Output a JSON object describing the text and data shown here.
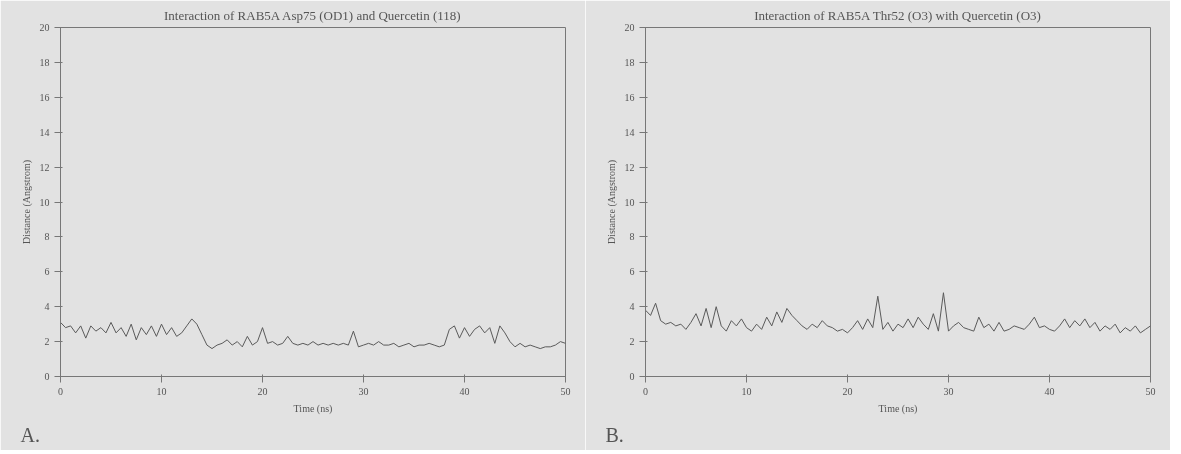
{
  "chart_data": [
    {
      "type": "line",
      "title": "Interaction of RAB5A Asp75 (OD1) and Quercetin (118)",
      "xlabel": "Time (ns)",
      "ylabel": "Distance (Angstrom)",
      "annotations": [
        "A."
      ],
      "x": [
        0,
        0.5,
        1,
        1.5,
        2,
        2.5,
        3,
        3.5,
        4,
        4.5,
        5,
        5.5,
        6,
        6.5,
        7,
        7.5,
        8,
        8.5,
        9,
        9.5,
        10,
        10.5,
        11,
        11.5,
        12,
        12.5,
        13,
        13.5,
        14,
        14.5,
        15,
        15.5,
        16,
        16.5,
        17,
        17.5,
        18,
        18.5,
        19,
        19.5,
        20,
        20.5,
        21,
        21.5,
        22,
        22.5,
        23,
        23.5,
        24,
        24.5,
        25,
        25.5,
        26,
        26.5,
        27,
        27.5,
        28,
        28.5,
        29,
        29.5,
        30,
        30.5,
        31,
        31.5,
        32,
        32.5,
        33,
        33.5,
        34,
        34.5,
        35,
        35.5,
        36,
        36.5,
        37,
        37.5,
        38,
        38.5,
        39,
        39.5,
        40,
        40.5,
        41,
        41.5,
        42,
        42.5,
        43,
        43.5,
        44,
        44.5,
        45,
        45.5,
        46,
        46.5,
        47,
        47.5,
        48,
        48.5,
        49,
        49.5,
        50
      ],
      "series": [
        {
          "color": "#5a5a5a",
          "values": [
            3.1,
            2.8,
            2.9,
            2.5,
            2.9,
            2.2,
            2.9,
            2.6,
            2.8,
            2.5,
            3.1,
            2.5,
            2.8,
            2.3,
            3.0,
            2.1,
            2.8,
            2.4,
            2.9,
            2.3,
            3.0,
            2.4,
            2.8,
            2.3,
            2.5,
            2.9,
            3.3,
            3.0,
            2.4,
            1.8,
            1.6,
            1.8,
            1.9,
            2.1,
            1.8,
            2.0,
            1.7,
            2.3,
            1.8,
            2.0,
            2.8,
            1.9,
            2.0,
            1.8,
            1.9,
            2.3,
            1.9,
            1.8,
            1.9,
            1.8,
            2.0,
            1.8,
            1.9,
            1.8,
            1.9,
            1.8,
            1.9,
            1.8,
            2.6,
            1.7,
            1.8,
            1.9,
            1.8,
            2.0,
            1.8,
            1.8,
            1.9,
            1.7,
            1.8,
            1.9,
            1.7,
            1.8,
            1.8,
            1.9,
            1.8,
            1.7,
            1.8,
            2.7,
            2.9,
            2.2,
            2.8,
            2.3,
            2.7,
            2.9,
            2.5,
            2.8,
            1.9,
            2.9,
            2.5,
            2.0,
            1.7,
            1.9,
            1.7,
            1.8,
            1.7,
            1.6,
            1.7,
            1.7,
            1.8,
            2.0,
            1.9
          ]
        }
      ],
      "xlim": [
        0,
        50
      ],
      "ylim": [
        0,
        20
      ],
      "xticks": [
        0,
        10,
        20,
        30,
        40,
        50
      ],
      "yticks": [
        0,
        2,
        4,
        6,
        8,
        10,
        12,
        14,
        16,
        18,
        20
      ],
      "grid": false
    },
    {
      "type": "line",
      "title": "Interaction of RAB5A Thr52 (O3) with Quercetin (O3)",
      "xlabel": "Time (ns)",
      "ylabel": "Distance (Angstrom)",
      "annotations": [
        "B."
      ],
      "x": [
        0,
        0.5,
        1,
        1.5,
        2,
        2.5,
        3,
        3.5,
        4,
        4.5,
        5,
        5.5,
        6,
        6.5,
        7,
        7.5,
        8,
        8.5,
        9,
        9.5,
        10,
        10.5,
        11,
        11.5,
        12,
        12.5,
        13,
        13.5,
        14,
        14.5,
        15,
        15.5,
        16,
        16.5,
        17,
        17.5,
        18,
        18.5,
        19,
        19.5,
        20,
        20.5,
        21,
        21.5,
        22,
        22.5,
        23,
        23.5,
        24,
        24.5,
        25,
        25.5,
        26,
        26.5,
        27,
        27.5,
        28,
        28.5,
        29,
        29.5,
        30,
        30.5,
        31,
        31.5,
        32,
        32.5,
        33,
        33.5,
        34,
        34.5,
        35,
        35.5,
        36,
        36.5,
        37,
        37.5,
        38,
        38.5,
        39,
        39.5,
        40,
        40.5,
        41,
        41.5,
        42,
        42.5,
        43,
        43.5,
        44,
        44.5,
        45,
        45.5,
        46,
        46.5,
        47,
        47.5,
        48,
        48.5,
        49,
        49.5,
        50
      ],
      "series": [
        {
          "color": "#5a5a5a",
          "values": [
            3.8,
            3.5,
            4.2,
            3.2,
            3.0,
            3.1,
            2.9,
            3.0,
            2.7,
            3.1,
            3.6,
            2.9,
            3.9,
            2.8,
            4.0,
            2.9,
            2.6,
            3.2,
            2.9,
            3.3,
            2.8,
            2.6,
            3.0,
            2.7,
            3.4,
            2.9,
            3.7,
            3.1,
            3.9,
            3.5,
            3.2,
            2.9,
            2.7,
            3.0,
            2.8,
            3.2,
            2.9,
            2.8,
            2.6,
            2.7,
            2.5,
            2.8,
            3.2,
            2.7,
            3.3,
            2.8,
            4.6,
            2.7,
            3.1,
            2.6,
            3.0,
            2.8,
            3.3,
            2.8,
            3.4,
            3.0,
            2.7,
            3.6,
            2.6,
            4.8,
            2.6,
            2.9,
            3.1,
            2.8,
            2.7,
            2.6,
            3.4,
            2.8,
            3.0,
            2.6,
            3.1,
            2.6,
            2.7,
            2.9,
            2.8,
            2.7,
            3.0,
            3.4,
            2.8,
            2.9,
            2.7,
            2.6,
            2.9,
            3.3,
            2.8,
            3.2,
            2.9,
            3.3,
            2.8,
            3.1,
            2.6,
            2.9,
            2.7,
            3.0,
            2.5,
            2.8,
            2.6,
            2.9,
            2.5,
            2.7,
            2.9
          ]
        }
      ],
      "xlim": [
        0,
        50
      ],
      "ylim": [
        0,
        20
      ],
      "xticks": [
        0,
        10,
        20,
        30,
        40,
        50
      ],
      "yticks": [
        0,
        2,
        4,
        6,
        8,
        10,
        12,
        14,
        16,
        18,
        20
      ],
      "grid": false
    }
  ]
}
